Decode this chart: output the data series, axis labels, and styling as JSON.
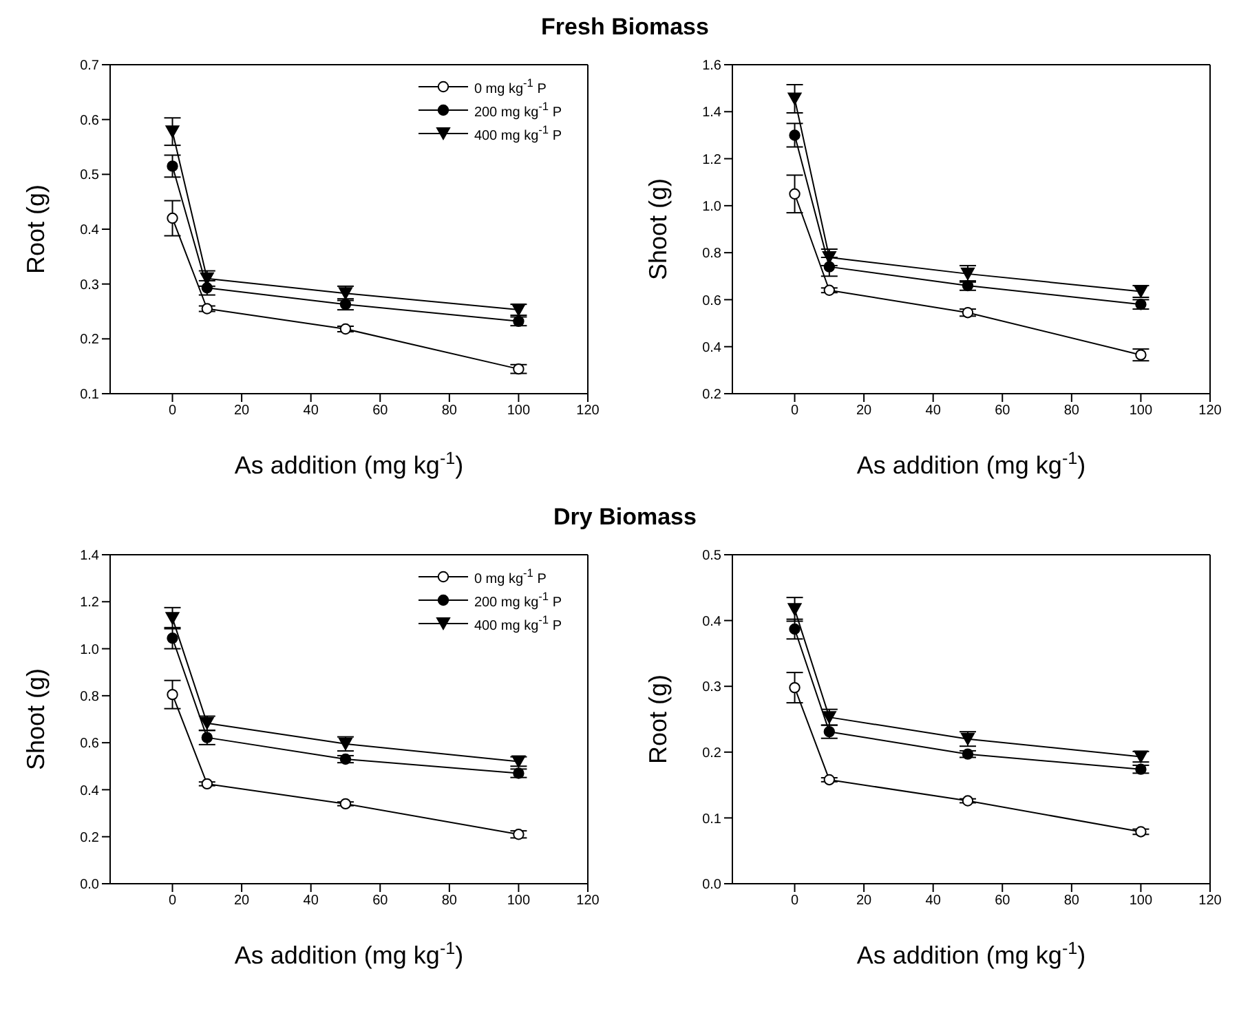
{
  "chart_data": [
    {
      "type": "line",
      "title": "Fresh Biomass",
      "xlabel": "As addition (mg kg$^{-1}$)",
      "ylabel": "Root (g)",
      "x": [
        0,
        10,
        50,
        100
      ],
      "xlim": [
        -18,
        120
      ],
      "xticks": [
        0,
        20,
        40,
        60,
        80,
        100,
        120
      ],
      "ylim": [
        0.1,
        0.7
      ],
      "yticks": [
        0.1,
        0.2,
        0.3,
        0.4,
        0.5,
        0.6,
        0.7
      ],
      "legend": "top right",
      "grid": false,
      "series": [
        {
          "name": "0 mg kg$^{-1}$ P",
          "color": "#000000",
          "marker": "circle",
          "values": [
            0.42,
            0.255,
            0.218,
            0.145
          ],
          "errors": [
            0.032,
            0.005,
            0.005,
            0.008
          ]
        },
        {
          "name": "200 mg kg$^{-1}$ P",
          "color": "#000000",
          "marker": "circle",
          "values": [
            0.515,
            0.293,
            0.263,
            0.232
          ],
          "errors": [
            0.02,
            0.013,
            0.01,
            0.008
          ]
        },
        {
          "name": "400 mg kg$^{-1}$ P",
          "color": "#000000",
          "marker": "triangle",
          "values": [
            0.578,
            0.31,
            0.283,
            0.253
          ],
          "errors": [
            0.025,
            0.014,
            0.013,
            0.01
          ]
        }
      ]
    },
    {
      "type": "line",
      "xlabel": "As addition (mg kg$^{-1}$)",
      "ylabel": "Shoot (g)",
      "x": [
        0,
        10,
        50,
        100
      ],
      "xlim": [
        -18,
        120
      ],
      "xticks": [
        0,
        20,
        40,
        60,
        80,
        100,
        120
      ],
      "ylim": [
        0.2,
        1.6
      ],
      "yticks": [
        {
          "value": 0.2,
          "label": "0.2"
        },
        {
          "value": 0.4,
          "label": "0.4"
        },
        {
          "value": 0.6,
          "label": "0.6"
        },
        {
          "value": 0.8,
          "label": "0.8"
        },
        {
          "value": 1.0,
          "label": "1.0"
        },
        {
          "value": 1.2,
          "label": "1.2"
        },
        {
          "value": 1.4,
          "label": "1.4"
        },
        {
          "value": 1.6,
          "label": "1.6"
        }
      ],
      "legend": false,
      "grid": false,
      "series": [
        {
          "color": "#000000",
          "marker": "circle",
          "values": [
            1.05,
            0.64,
            0.545,
            0.365
          ],
          "errors": [
            0.08,
            0.01,
            0.015,
            0.025
          ]
        },
        {
          "color": "#000000",
          "marker": "circle",
          "values": [
            1.3,
            0.74,
            0.66,
            0.58
          ],
          "errors": [
            0.05,
            0.04,
            0.02,
            0.02
          ]
        },
        {
          "color": "#000000",
          "marker": "triangle",
          "values": [
            1.455,
            0.78,
            0.71,
            0.635
          ],
          "errors": [
            0.06,
            0.035,
            0.035,
            0.025
          ]
        }
      ]
    },
    {
      "type": "line",
      "title": "Dry Biomass",
      "xlabel": "As addition (mg kg$^{-1}$)",
      "ylabel": "Shoot (g)",
      "x": [
        0,
        10,
        50,
        100
      ],
      "xlim": [
        -18,
        120
      ],
      "xticks": [
        0,
        20,
        40,
        60,
        80,
        100,
        120
      ],
      "ylim": [
        0,
        1.4
      ],
      "yticks": [
        {
          "value": 0,
          "label": "0.0"
        },
        {
          "value": 0.2,
          "label": "0.2"
        },
        {
          "value": 0.4,
          "label": "0.4"
        },
        {
          "value": 0.6,
          "label": "0.6"
        },
        {
          "value": 0.8,
          "label": "0.8"
        },
        {
          "value": 1.0,
          "label": "1.0"
        },
        {
          "value": 1.2,
          "label": "1.2"
        },
        {
          "value": 1.4,
          "label": "1.4"
        }
      ],
      "legend": "top right",
      "grid": false,
      "series": [
        {
          "name": "0 mg kg$^{-1}$ P",
          "color": "#000000",
          "marker": "circle",
          "values": [
            0.805,
            0.425,
            0.34,
            0.21
          ],
          "errors": [
            0.06,
            0.008,
            0.008,
            0.015
          ]
        },
        {
          "name": "200 mg kg$^{-1}$ P",
          "color": "#000000",
          "marker": "circle",
          "values": [
            1.045,
            0.622,
            0.53,
            0.47
          ],
          "errors": [
            0.045,
            0.03,
            0.015,
            0.018
          ]
        },
        {
          "name": "400 mg kg$^{-1}$ P",
          "color": "#000000",
          "marker": "triangle",
          "values": [
            1.13,
            0.683,
            0.595,
            0.52
          ],
          "errors": [
            0.045,
            0.03,
            0.03,
            0.02
          ]
        }
      ]
    },
    {
      "type": "line",
      "xlabel": "As addition (mg kg$^{-1}$)",
      "ylabel": "Root (g)",
      "x": [
        0,
        10,
        50,
        100
      ],
      "xlim": [
        -18,
        120
      ],
      "xticks": [
        0,
        20,
        40,
        60,
        80,
        100,
        120
      ],
      "ylim": [
        0,
        0.5
      ],
      "yticks": [
        {
          "value": 0,
          "label": "0.0"
        },
        0.1,
        0.2,
        0.3,
        0.4,
        0.5
      ],
      "legend": false,
      "grid": false,
      "series": [
        {
          "color": "#000000",
          "marker": "circle",
          "values": [
            0.298,
            0.158,
            0.126,
            0.079
          ],
          "errors": [
            0.023,
            0.003,
            0.003,
            0.004
          ]
        },
        {
          "color": "#000000",
          "marker": "circle",
          "values": [
            0.387,
            0.231,
            0.197,
            0.174
          ],
          "errors": [
            0.015,
            0.01,
            0.005,
            0.006
          ]
        },
        {
          "color": "#000000",
          "marker": "triangle",
          "values": [
            0.417,
            0.253,
            0.22,
            0.193
          ],
          "errors": [
            0.018,
            0.012,
            0.011,
            0.008
          ]
        }
      ]
    }
  ]
}
